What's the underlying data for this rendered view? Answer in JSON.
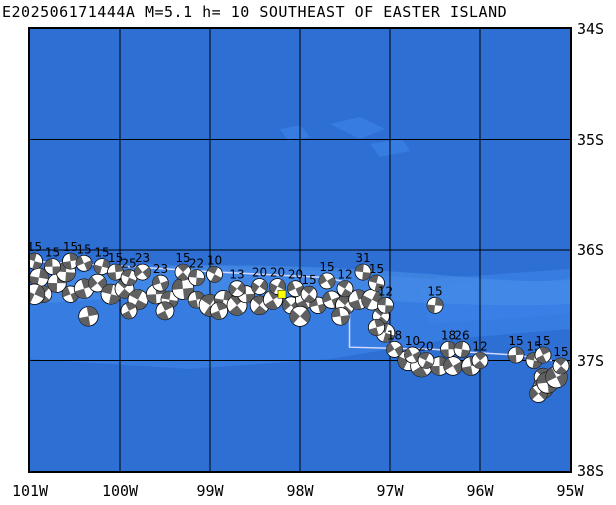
{
  "title": "E202506171444A M=5.1 h= 10 SOUTHEAST OF EASTER ISLAND",
  "event": {
    "id": "E202506171444A",
    "magnitude": "5.1",
    "depth_km": "10",
    "region": "SOUTHEAST OF EASTER ISLAND",
    "epicenter": {
      "lon": -98.2,
      "lat": -36.4
    },
    "marker_color": "#ffff00"
  },
  "map": {
    "lon_range": [
      -101,
      -95
    ],
    "lat_range": [
      -34,
      -38
    ],
    "ocean_color": "#2e6fd4",
    "shallow_color": "#3b80e6",
    "ridge_color": "#4a8fe8",
    "grid_color": "#000000",
    "plate_boundary_color": "#d0d8ff",
    "lat_labels": [
      "34S",
      "35S",
      "36S",
      "37S",
      "38S"
    ],
    "lat_values": [
      -34,
      -35,
      -36,
      -37,
      -38
    ],
    "lon_labels": [
      "101W",
      "100W",
      "99W",
      "98W",
      "97W",
      "96W",
      "95W"
    ],
    "lon_values": [
      -101,
      -100,
      -99,
      -98,
      -97,
      -96,
      -95
    ]
  },
  "plate_boundary": [
    [
      -101,
      -36.1
    ],
    [
      -99.9,
      -36.15
    ],
    [
      -98.9,
      -36.2
    ],
    [
      -97.7,
      -36.25
    ],
    [
      -97.45,
      -36.3
    ],
    [
      -97.45,
      -36.88
    ],
    [
      -96.5,
      -36.9
    ],
    [
      -96.2,
      -36.92
    ],
    [
      -95.6,
      -36.95
    ],
    [
      -95.2,
      -37.0
    ]
  ],
  "mechanisms": [
    {
      "lon": -100.95,
      "lat": -36.1,
      "label": "15"
    },
    {
      "lon": -100.75,
      "lat": -36.15,
      "label": "15"
    },
    {
      "lon": -100.55,
      "lat": -36.1,
      "label": "15"
    },
    {
      "lon": -100.4,
      "lat": -36.12,
      "label": "15"
    },
    {
      "lon": -100.2,
      "lat": -36.15,
      "label": "15"
    },
    {
      "lon": -100.05,
      "lat": -36.2,
      "label": "15"
    },
    {
      "lon": -99.9,
      "lat": -36.25,
      "label": "25"
    },
    {
      "lon": -99.75,
      "lat": -36.2,
      "label": "23"
    },
    {
      "lon": -99.55,
      "lat": -36.3,
      "label": "23"
    },
    {
      "lon": -99.3,
      "lat": -36.2,
      "label": "15"
    },
    {
      "lon": -99.15,
      "lat": -36.25,
      "label": "22"
    },
    {
      "lon": -98.95,
      "lat": -36.22,
      "label": "10"
    },
    {
      "lon": -98.7,
      "lat": -36.35,
      "label": "13"
    },
    {
      "lon": -98.45,
      "lat": -36.33,
      "label": "20"
    },
    {
      "lon": -98.25,
      "lat": -36.33,
      "label": "20"
    },
    {
      "lon": -98.05,
      "lat": -36.35,
      "label": "20"
    },
    {
      "lon": -97.9,
      "lat": -36.4,
      "label": "15"
    },
    {
      "lon": -97.7,
      "lat": -36.28,
      "label": "15"
    },
    {
      "lon": -97.5,
      "lat": -36.35,
      "label": "12"
    },
    {
      "lon": -97.3,
      "lat": -36.2,
      "label": "31"
    },
    {
      "lon": -97.15,
      "lat": -36.3,
      "label": "15"
    },
    {
      "lon": -97.05,
      "lat": -36.5,
      "label": "12"
    },
    {
      "lon": -96.5,
      "lat": -36.5,
      "label": "15"
    },
    {
      "lon": -96.95,
      "lat": -36.9,
      "label": "18"
    },
    {
      "lon": -96.75,
      "lat": -36.95,
      "label": "10"
    },
    {
      "lon": -96.6,
      "lat": -37.0,
      "label": "20"
    },
    {
      "lon": -96.35,
      "lat": -36.9,
      "label": "18"
    },
    {
      "lon": -96.2,
      "lat": -36.9,
      "label": "26"
    },
    {
      "lon": -96.0,
      "lat": -37.0,
      "label": "12"
    },
    {
      "lon": -95.6,
      "lat": -36.95,
      "label": "15"
    },
    {
      "lon": -95.4,
      "lat": -37.0,
      "label": "15"
    },
    {
      "lon": -95.3,
      "lat": -36.95,
      "label": "15"
    },
    {
      "lon": -95.1,
      "lat": -37.05,
      "label": "15"
    }
  ],
  "cluster": [
    [
      -100.9,
      -36.25
    ],
    [
      -100.85,
      -36.4
    ],
    [
      -100.7,
      -36.3
    ],
    [
      -100.55,
      -36.4
    ],
    [
      -100.4,
      -36.35
    ],
    [
      -100.25,
      -36.3
    ],
    [
      -100.1,
      -36.4
    ],
    [
      -99.95,
      -36.35
    ],
    [
      -99.8,
      -36.45
    ],
    [
      -99.6,
      -36.4
    ],
    [
      -99.45,
      -36.45
    ],
    [
      -99.3,
      -36.35
    ],
    [
      -99.15,
      -36.45
    ],
    [
      -99.0,
      -36.5
    ],
    [
      -98.85,
      -36.45
    ],
    [
      -98.7,
      -36.5
    ],
    [
      -98.6,
      -36.4
    ],
    [
      -98.45,
      -36.5
    ],
    [
      -98.3,
      -36.45
    ],
    [
      -98.1,
      -36.5
    ],
    [
      -97.95,
      -36.45
    ],
    [
      -97.8,
      -36.5
    ],
    [
      -97.65,
      -36.45
    ],
    [
      -97.5,
      -36.5
    ],
    [
      -97.35,
      -36.45
    ],
    [
      -97.2,
      -36.45
    ],
    [
      -97.1,
      -36.6
    ],
    [
      -97.05,
      -36.75
    ],
    [
      -97.15,
      -36.7
    ],
    [
      -96.8,
      -37.0
    ],
    [
      -96.65,
      -37.05
    ],
    [
      -96.45,
      -37.05
    ],
    [
      -96.3,
      -37.05
    ],
    [
      -96.1,
      -37.05
    ],
    [
      -95.3,
      -37.15
    ],
    [
      -95.3,
      -37.25
    ],
    [
      -95.35,
      -37.3
    ],
    [
      -95.25,
      -37.2
    ],
    [
      -95.15,
      -37.15
    ],
    [
      -100.95,
      -36.4
    ],
    [
      -100.6,
      -36.2
    ],
    [
      -99.5,
      -36.55
    ],
    [
      -98.9,
      -36.55
    ],
    [
      -98.0,
      -36.6
    ],
    [
      -97.55,
      -36.6
    ],
    [
      -99.9,
      -36.55
    ],
    [
      -100.35,
      -36.6
    ]
  ]
}
